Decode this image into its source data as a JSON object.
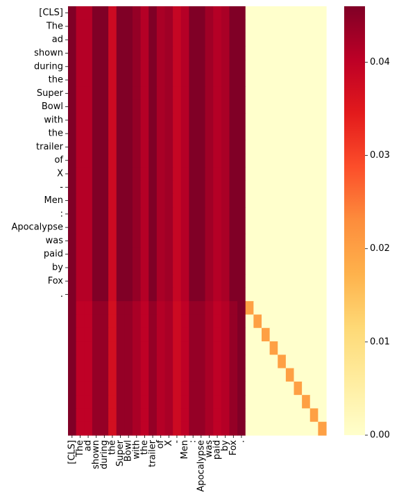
{
  "chart_data": {
    "type": "heatmap",
    "title": "",
    "xlabel": "",
    "ylabel": "",
    "colormap": "YlOrRd",
    "colorbar": {
      "min": 0.0,
      "max": 0.046,
      "ticks": [
        "0.00",
        "0.01",
        "0.02",
        "0.03",
        "0.04"
      ],
      "tick_values": [
        0.0,
        0.01,
        0.02,
        0.03,
        0.04
      ]
    },
    "x_tick_labels": [
      "[CLS]",
      "The",
      "ad",
      "shown",
      "during",
      "the",
      "Super",
      "Bowl",
      "with",
      "the",
      "trailer",
      "of",
      "X",
      "-",
      "Men",
      ":",
      "Apocalypse",
      "was",
      "paid",
      "by",
      "Fox",
      "."
    ],
    "y_tick_labels": [
      "[CLS]",
      "The",
      "ad",
      "shown",
      "during",
      "the",
      "Super",
      "Bowl",
      "with",
      "the",
      "trailer",
      "of",
      "X",
      "-",
      "Men",
      ":",
      "Apocalypse",
      "was",
      "paid",
      "by",
      "Fox",
      "."
    ],
    "n_rows": 32,
    "n_cols": 32,
    "token_column_values": [
      0.046,
      0.041,
      0.041,
      0.046,
      0.046,
      0.038,
      0.046,
      0.046,
      0.044,
      0.041,
      0.046,
      0.042,
      0.043,
      0.039,
      0.041,
      0.046,
      0.046,
      0.043,
      0.041,
      0.042,
      0.046,
      0.046
    ],
    "padding_row_values": [
      0.046,
      0.04,
      0.04,
      0.044,
      0.044,
      0.037,
      0.044,
      0.044,
      0.042,
      0.04,
      0.044,
      0.041,
      0.042,
      0.038,
      0.04,
      0.044,
      0.044,
      0.042,
      0.04,
      0.041,
      0.044,
      0.046
    ],
    "padding_diagonal_value": 0.02,
    "padding_background_value": 0.0
  }
}
